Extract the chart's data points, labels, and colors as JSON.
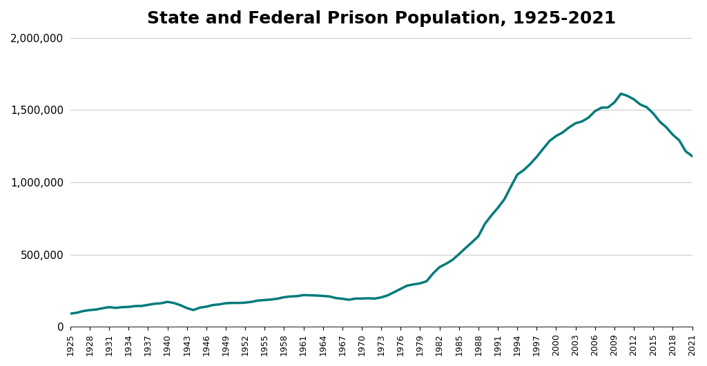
{
  "title": "State and Federal Prison Population, 1925-2021",
  "title_fontsize": 18,
  "line_color": "#007a7a",
  "line_width": 2.5,
  "background_color": "#ffffff",
  "grid_color": "#cccccc",
  "ylim": [
    0,
    2000000
  ],
  "yticks": [
    0,
    500000,
    1000000,
    1500000,
    2000000
  ],
  "xlabel": "",
  "ylabel": "",
  "years": [
    1925,
    1926,
    1927,
    1928,
    1929,
    1930,
    1931,
    1932,
    1933,
    1934,
    1935,
    1936,
    1937,
    1938,
    1939,
    1940,
    1941,
    1942,
    1943,
    1944,
    1945,
    1946,
    1947,
    1948,
    1949,
    1950,
    1951,
    1952,
    1953,
    1954,
    1955,
    1956,
    1957,
    1958,
    1959,
    1960,
    1961,
    1962,
    1963,
    1964,
    1965,
    1966,
    1967,
    1968,
    1969,
    1970,
    1971,
    1972,
    1973,
    1974,
    1975,
    1976,
    1977,
    1978,
    1979,
    1980,
    1981,
    1982,
    1983,
    1984,
    1985,
    1986,
    1987,
    1988,
    1989,
    1990,
    1991,
    1992,
    1993,
    1994,
    1995,
    1996,
    1997,
    1998,
    1999,
    2000,
    2001,
    2002,
    2003,
    2004,
    2005,
    2006,
    2007,
    2008,
    2009,
    2010,
    2011,
    2012,
    2013,
    2014,
    2015,
    2016,
    2017,
    2018,
    2019,
    2020,
    2021
  ],
  "values": [
    91669,
    97991,
    109983,
    116390,
    120496,
    129453,
    137082,
    131533,
    136810,
    138316,
    144180,
    145038,
    152741,
    160285,
    163663,
    173706,
    165439,
    150384,
    130225,
    116884,
    133649,
    140079,
    151304,
    155977,
    163749,
    166165,
    165680,
    168233,
    173579,
    182901,
    185780,
    189565,
    195414,
    205643,
    210895,
    212953,
    220149,
    218830,
    217283,
    214336,
    210895,
    199654,
    194896,
    187914,
    196007,
    196429,
    198061,
    196092,
    204211,
    218466,
    240593,
    263291,
    285456,
    294396,
    301470,
    315974,
    369930,
    413806,
    436855,
    463866,
    503601,
    544972,
    585292,
    627402,
    712967,
    771243,
    823414,
    882500,
    969301,
    1053738,
    1085363,
    1127132,
    1176922,
    1232900,
    1287172,
    1321137,
    1345217,
    1380516,
    1409280,
    1421911,
    1448344,
    1492973,
    1516879,
    1518559,
    1553574,
    1613803,
    1598783,
    1574700,
    1538847,
    1519710,
    1476847,
    1420347,
    1381438,
    1330234,
    1291285,
    1215028,
    1182166
  ]
}
